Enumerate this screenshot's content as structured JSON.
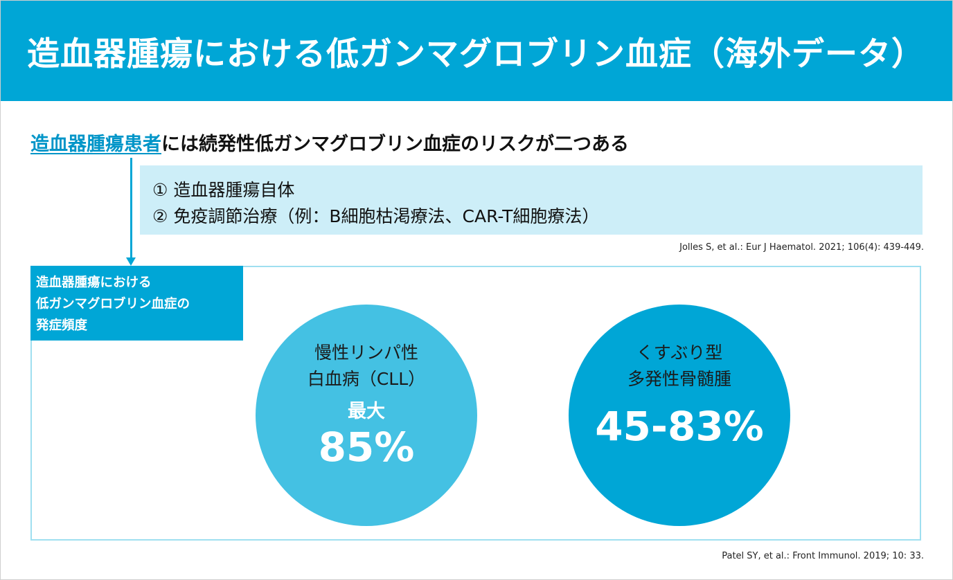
{
  "header": {
    "title": "造血器腫瘍における低ガンマグロブリン血症（海外データ）"
  },
  "lead": {
    "link_text": "造血器腫瘍患者",
    "rest_text": "には続発性低ガンマグロブリン血症のリスクが二つある"
  },
  "risks": [
    "① 造血器腫瘍自体",
    "② 免疫調節治療（例：B細胞枯渇療法、CAR-T細胞療法）"
  ],
  "citations": [
    "Jolles S, et al.: Eur J Haematol. 2021; 106(4): 439-449.",
    "Patel SY, et al.: Front Immunol. 2019; 10: 33."
  ],
  "panel": {
    "label_lines": [
      "造血器腫瘍における",
      "低ガンマグロブリン血症の",
      "発症頻度"
    ]
  },
  "incidence": [
    {
      "line1": "慢性リンパ性",
      "line2": "白血病（CLL）",
      "qualifier": "最大",
      "value": "85%"
    },
    {
      "line1": "くすぶり型",
      "line2": "多発性骨髄腫",
      "value": "45-83%"
    }
  ],
  "colors": {
    "accent": "#00a6d6",
    "light_accent": "#44c1e3",
    "risk_bg": "#cdeef8",
    "panel_border": "#9fdff0"
  }
}
